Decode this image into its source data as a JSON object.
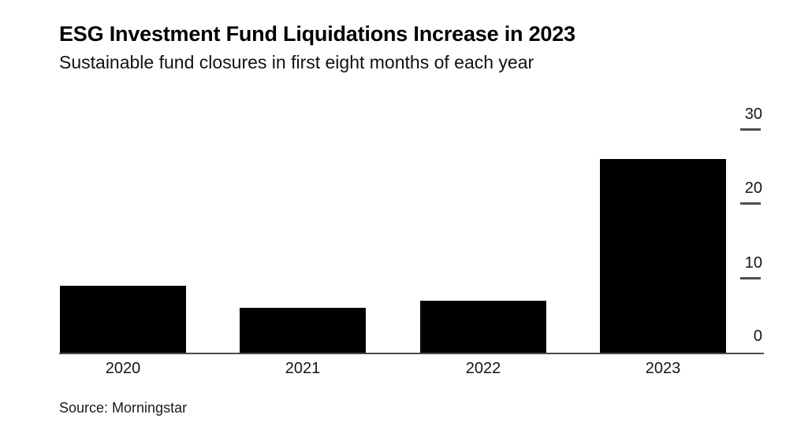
{
  "header": {
    "title": "ESG Investment Fund Liquidations Increase in 2023",
    "subtitle": "Sustainable fund closures in first eight months of each year"
  },
  "chart_data": {
    "type": "bar",
    "categories": [
      "2020",
      "2021",
      "2022",
      "2023"
    ],
    "values": [
      9,
      6,
      7,
      26
    ],
    "title": "ESG Investment Fund Liquidations Increase in 2023",
    "subtitle": "Sustainable fund closures in first eight months of each year",
    "xlabel": "",
    "ylabel": "",
    "ylim": [
      0,
      30
    ],
    "yticks": [
      0,
      10,
      20,
      30
    ],
    "axis_side": "right",
    "grid": false,
    "legend": false,
    "bar_color": "#000000"
  },
  "source": {
    "label": "Source: Morningstar"
  },
  "colors": {
    "background": "#ffffff",
    "bar": "#000000",
    "title_text": "#000000",
    "tick_text": "#161616",
    "axis_line": "#4a4a4a",
    "tick_dash": "#4d4d4d"
  }
}
